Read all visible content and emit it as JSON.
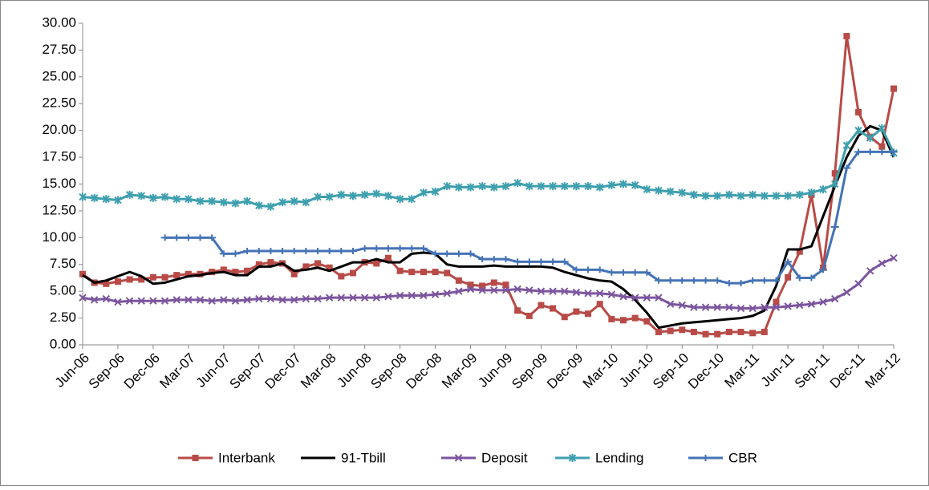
{
  "chart_data": {
    "type": "line",
    "categories": [
      "Jun-06",
      null,
      null,
      "Sep-06",
      null,
      null,
      "Dec-06",
      null,
      null,
      "Mar-07",
      null,
      null,
      "Jun-07",
      null,
      null,
      "Sep-07",
      null,
      null,
      "Dec-07",
      null,
      null,
      "Mar-08",
      null,
      null,
      "Jun-08",
      null,
      null,
      "Sep-08",
      null,
      null,
      "Dec-08",
      null,
      null,
      "Mar-09",
      null,
      null,
      "Jun-09",
      null,
      null,
      "Sep-09",
      null,
      null,
      "Dec-09",
      null,
      null,
      "Mar-10",
      null,
      null,
      "Jun-10",
      null,
      null,
      "Sep-10",
      null,
      null,
      "Dec-10",
      null,
      null,
      "Mar-11",
      null,
      null,
      "Jun-11",
      null,
      null,
      "Sep-11",
      null,
      null,
      "Dec-11",
      null,
      null,
      "Mar-12"
    ],
    "series": [
      {
        "name": "Interbank",
        "color": "#b84b47",
        "marker": "square",
        "values": [
          6.6,
          5.8,
          5.7,
          5.9,
          6.1,
          6.1,
          6.3,
          6.3,
          6.5,
          6.6,
          6.6,
          6.8,
          7.0,
          6.8,
          6.9,
          7.5,
          7.7,
          7.6,
          6.6,
          7.3,
          7.6,
          7.2,
          6.4,
          6.7,
          7.7,
          7.6,
          8.1,
          6.9,
          6.8,
          6.8,
          6.8,
          6.7,
          6.0,
          5.6,
          5.5,
          5.8,
          5.6,
          3.2,
          2.7,
          3.7,
          3.4,
          2.6,
          3.1,
          2.9,
          3.8,
          2.4,
          2.3,
          2.5,
          2.2,
          1.2,
          1.3,
          1.4,
          1.2,
          1.0,
          1.0,
          1.2,
          1.2,
          1.1,
          1.2,
          4.0,
          6.3,
          8.7,
          14.0,
          7.2,
          16.0,
          28.8,
          21.7,
          19.4,
          18.5,
          23.9
        ]
      },
      {
        "name": "91-Tbill",
        "color": "#000000",
        "values": [
          6.5,
          5.8,
          6.0,
          6.4,
          6.8,
          6.4,
          5.7,
          5.8,
          6.1,
          6.4,
          6.5,
          6.7,
          6.8,
          6.5,
          6.5,
          7.3,
          7.3,
          7.6,
          6.9,
          7.0,
          7.2,
          6.9,
          7.3,
          7.7,
          7.7,
          8.0,
          7.7,
          7.7,
          8.5,
          8.6,
          8.5,
          7.5,
          7.3,
          7.3,
          7.3,
          7.4,
          7.3,
          7.3,
          7.3,
          7.3,
          7.2,
          6.8,
          6.5,
          6.2,
          6.0,
          5.9,
          5.2,
          4.2,
          3.0,
          1.6,
          1.8,
          2.0,
          2.1,
          2.2,
          2.3,
          2.4,
          2.5,
          2.7,
          3.2,
          5.5,
          8.9,
          8.9,
          9.2,
          12.0,
          14.8,
          17.5,
          19.5,
          20.4,
          20.0,
          17.5
        ]
      },
      {
        "name": "Deposit",
        "color": "#7b559e",
        "marker": "x",
        "values": [
          4.4,
          4.2,
          4.3,
          4.0,
          4.1,
          4.1,
          4.1,
          4.1,
          4.2,
          4.2,
          4.2,
          4.1,
          4.2,
          4.1,
          4.2,
          4.3,
          4.3,
          4.2,
          4.2,
          4.3,
          4.3,
          4.4,
          4.4,
          4.4,
          4.4,
          4.4,
          4.5,
          4.6,
          4.6,
          4.6,
          4.7,
          4.8,
          5.0,
          5.2,
          5.1,
          5.1,
          5.1,
          5.2,
          5.1,
          5.0,
          5.0,
          5.0,
          4.9,
          4.8,
          4.8,
          4.7,
          4.5,
          4.4,
          4.4,
          4.4,
          3.8,
          3.7,
          3.5,
          3.5,
          3.5,
          3.5,
          3.4,
          3.4,
          3.5,
          3.5,
          3.6,
          3.7,
          3.8,
          4.0,
          4.3,
          4.9,
          5.7,
          6.9,
          7.6,
          8.1
        ]
      },
      {
        "name": "Lending",
        "color": "#3e9fae",
        "marker": "star",
        "values": [
          13.8,
          13.7,
          13.6,
          13.5,
          14.0,
          13.9,
          13.7,
          13.8,
          13.6,
          13.6,
          13.4,
          13.4,
          13.3,
          13.2,
          13.4,
          13.0,
          12.9,
          13.3,
          13.4,
          13.3,
          13.8,
          13.8,
          14.0,
          13.9,
          14.0,
          14.1,
          13.9,
          13.6,
          13.6,
          14.2,
          14.3,
          14.8,
          14.7,
          14.7,
          14.8,
          14.7,
          14.8,
          15.1,
          14.8,
          14.8,
          14.8,
          14.8,
          14.8,
          14.8,
          14.7,
          14.9,
          15.0,
          14.9,
          14.5,
          14.4,
          14.3,
          14.2,
          14.0,
          13.9,
          13.9,
          14.0,
          13.9,
          14.0,
          13.9,
          13.9,
          13.9,
          14.0,
          14.2,
          14.5,
          15.0,
          18.6,
          20.0,
          19.3,
          20.2,
          17.9
        ]
      },
      {
        "name": "CBR",
        "color": "#4473b6",
        "marker": "plus",
        "values": [
          null,
          null,
          null,
          null,
          null,
          null,
          null,
          10,
          10,
          10,
          10,
          10,
          8.5,
          8.5,
          8.75,
          8.75,
          8.75,
          8.75,
          8.75,
          8.75,
          8.75,
          8.75,
          8.75,
          8.75,
          9,
          9,
          9,
          9,
          9,
          9,
          8.5,
          8.5,
          8.5,
          8.5,
          8.0,
          8.0,
          8.0,
          7.75,
          7.75,
          7.75,
          7.75,
          7.75,
          7.0,
          7.0,
          7.0,
          6.75,
          6.75,
          6.75,
          6.75,
          6.0,
          6.0,
          6.0,
          6.0,
          6.0,
          6.0,
          5.75,
          5.75,
          6.0,
          6.0,
          6.0,
          7.75,
          6.25,
          6.25,
          7.0,
          11.0,
          16.5,
          18.0,
          18.0,
          18.0,
          18.0
        ]
      }
    ],
    "ylim": [
      0,
      30
    ],
    "yticks": [
      {
        "value": 0,
        "label": "0.00"
      },
      {
        "value": 2.5,
        "label": "2.50"
      },
      {
        "value": 5,
        "label": "5.00"
      },
      {
        "value": 7.5,
        "label": "7.50"
      },
      {
        "value": 10,
        "label": "10.00"
      },
      {
        "value": 12.5,
        "label": "12.50"
      },
      {
        "value": 15,
        "label": "15.00"
      },
      {
        "value": 17.5,
        "label": "17.50"
      },
      {
        "value": 20,
        "label": "20.00"
      },
      {
        "value": 22.5,
        "label": "22.50"
      },
      {
        "value": 25,
        "label": "25.00"
      },
      {
        "value": 27.5,
        "label": "27.50"
      },
      {
        "value": 30,
        "label": "30.00"
      }
    ],
    "grid": false,
    "legend": "bottom"
  }
}
